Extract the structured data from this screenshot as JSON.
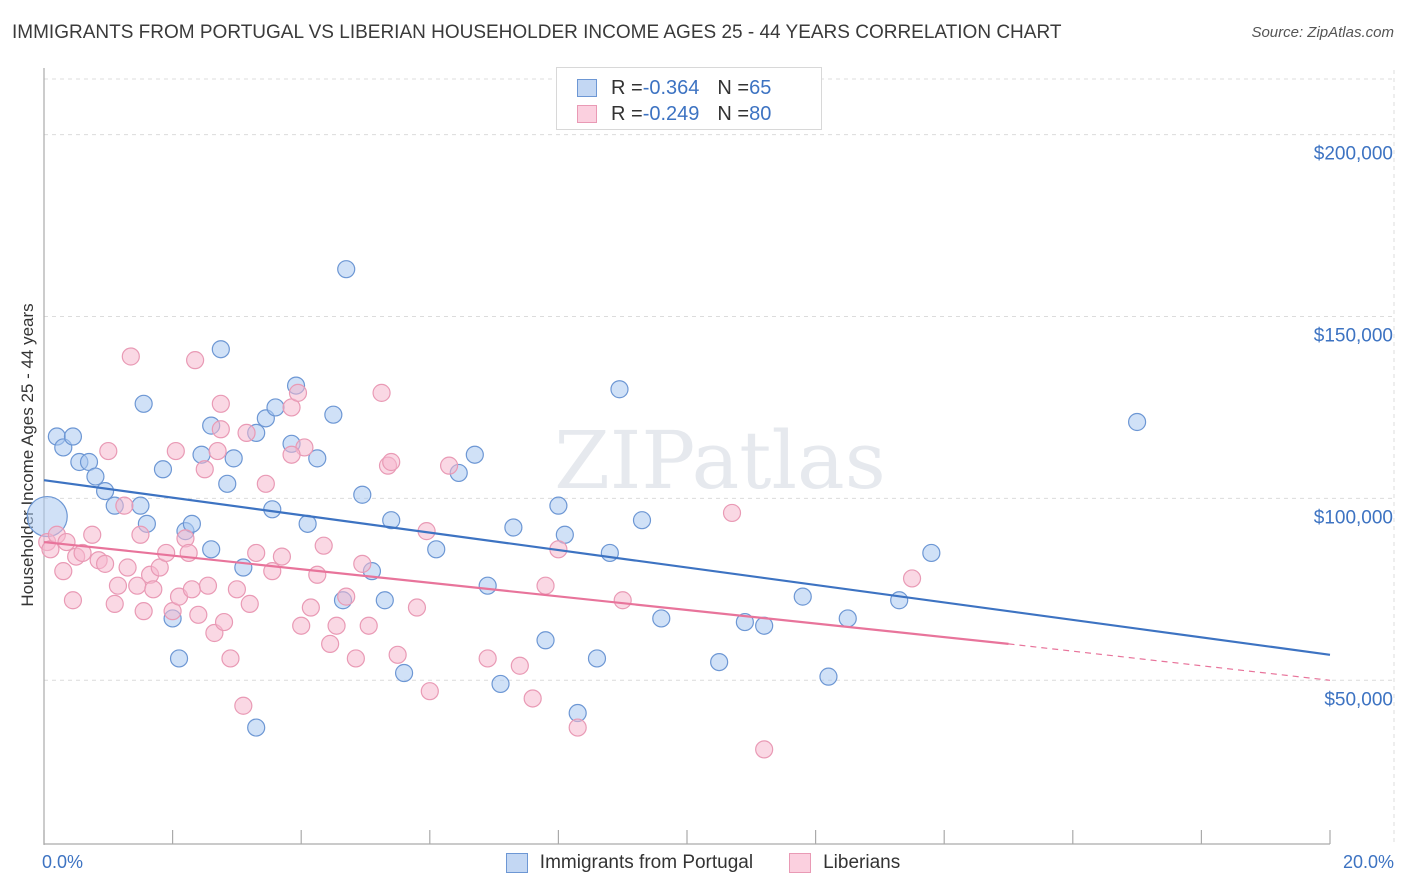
{
  "title": "IMMIGRANTS FROM PORTUGAL VS LIBERIAN HOUSEHOLDER INCOME AGES 25 - 44 YEARS CORRELATION CHART",
  "source": "Source: ZipAtlas.com",
  "watermark": "ZIPatlas",
  "colors": {
    "blue": "#3d73c2",
    "blue_fill": "#a9c8f0",
    "pink": "#e8749b",
    "pink_fill": "#f5b8cd",
    "grid": "#dcdcdc"
  },
  "legend": {
    "rows": [
      {
        "r_label": "R = ",
        "r_value": "-0.364",
        "n_label": "N = ",
        "n_value": "65"
      },
      {
        "r_label": "R = ",
        "r_value": "-0.249",
        "n_label": "N = ",
        "n_value": "80"
      }
    ]
  },
  "chart_data": {
    "type": "scatter",
    "xlabel": "",
    "ylabel": "Householder Income Ages 25 - 44 years",
    "xlim": [
      0,
      20
    ],
    "ylim": [
      5000,
      215000
    ],
    "x_tick_labels": [
      "0.0%",
      "20.0%"
    ],
    "y_ticks": [
      50000,
      100000,
      150000,
      200000
    ],
    "y_tick_labels": [
      "$50,000",
      "$100,000",
      "$150,000",
      "$200,000"
    ],
    "series": [
      {
        "name": "Immigrants from Portugal",
        "color": "#3d73c2",
        "trend": {
          "x0": 0,
          "y0": 105000,
          "x1": 20,
          "y1": 57000
        },
        "points": [
          [
            0.05,
            95000
          ],
          [
            0.2,
            117000
          ],
          [
            0.3,
            114000
          ],
          [
            0.45,
            117000
          ],
          [
            0.55,
            110000
          ],
          [
            0.7,
            110000
          ],
          [
            0.8,
            106000
          ],
          [
            0.95,
            102000
          ],
          [
            1.1,
            98000
          ],
          [
            1.5,
            98000
          ],
          [
            1.6,
            93000
          ],
          [
            1.85,
            108000
          ],
          [
            2.0,
            67000
          ],
          [
            2.1,
            56000
          ],
          [
            2.2,
            91000
          ],
          [
            2.3,
            93000
          ],
          [
            2.45,
            112000
          ],
          [
            2.6,
            86000
          ],
          [
            2.75,
            141000
          ],
          [
            2.85,
            104000
          ],
          [
            2.95,
            111000
          ],
          [
            3.1,
            81000
          ],
          [
            3.3,
            118000
          ],
          [
            3.45,
            122000
          ],
          [
            3.55,
            97000
          ],
          [
            3.6,
            125000
          ],
          [
            3.85,
            115000
          ],
          [
            3.92,
            131000
          ],
          [
            4.1,
            93000
          ],
          [
            4.25,
            111000
          ],
          [
            4.5,
            123000
          ],
          [
            4.65,
            72000
          ],
          [
            4.7,
            163000
          ],
          [
            4.95,
            101000
          ],
          [
            5.1,
            80000
          ],
          [
            5.3,
            72000
          ],
          [
            5.6,
            52000
          ],
          [
            6.1,
            86000
          ],
          [
            6.45,
            107000
          ],
          [
            6.7,
            112000
          ],
          [
            6.9,
            76000
          ],
          [
            7.1,
            49000
          ],
          [
            7.3,
            92000
          ],
          [
            7.8,
            61000
          ],
          [
            8.0,
            98000
          ],
          [
            8.1,
            90000
          ],
          [
            8.3,
            41000
          ],
          [
            8.6,
            56000
          ],
          [
            8.8,
            85000
          ],
          [
            8.95,
            130000
          ],
          [
            9.3,
            94000
          ],
          [
            9.6,
            67000
          ],
          [
            10.5,
            55000
          ],
          [
            10.9,
            66000
          ],
          [
            11.2,
            65000
          ],
          [
            11.8,
            73000
          ],
          [
            12.2,
            51000
          ],
          [
            12.5,
            67000
          ],
          [
            13.3,
            72000
          ],
          [
            13.8,
            85000
          ],
          [
            3.3,
            37000
          ],
          [
            2.6,
            120000
          ],
          [
            1.55,
            126000
          ],
          [
            17.0,
            121000
          ],
          [
            5.4,
            94000
          ]
        ]
      },
      {
        "name": "Liberians",
        "color": "#e8749b",
        "trend": {
          "x0": 0,
          "y0": 88000,
          "x1": 15,
          "y1": 60000,
          "dash_x1": 20,
          "dash_y1": 50000
        },
        "points": [
          [
            0.05,
            88000
          ],
          [
            0.1,
            86000
          ],
          [
            0.2,
            90000
          ],
          [
            0.3,
            80000
          ],
          [
            0.35,
            88000
          ],
          [
            0.45,
            72000
          ],
          [
            0.5,
            84000
          ],
          [
            0.6,
            85000
          ],
          [
            0.75,
            90000
          ],
          [
            0.85,
            83000
          ],
          [
            0.95,
            82000
          ],
          [
            1.0,
            113000
          ],
          [
            1.1,
            71000
          ],
          [
            1.15,
            76000
          ],
          [
            1.25,
            98000
          ],
          [
            1.3,
            81000
          ],
          [
            1.45,
            76000
          ],
          [
            1.5,
            90000
          ],
          [
            1.55,
            69000
          ],
          [
            1.65,
            79000
          ],
          [
            1.7,
            75000
          ],
          [
            1.8,
            81000
          ],
          [
            1.9,
            85000
          ],
          [
            2.0,
            69000
          ],
          [
            2.05,
            113000
          ],
          [
            2.1,
            73000
          ],
          [
            2.2,
            89000
          ],
          [
            2.25,
            85000
          ],
          [
            2.3,
            75000
          ],
          [
            2.4,
            68000
          ],
          [
            2.5,
            108000
          ],
          [
            2.55,
            76000
          ],
          [
            2.65,
            63000
          ],
          [
            2.7,
            113000
          ],
          [
            2.75,
            119000
          ],
          [
            2.8,
            66000
          ],
          [
            2.9,
            56000
          ],
          [
            3.0,
            75000
          ],
          [
            3.1,
            43000
          ],
          [
            3.15,
            118000
          ],
          [
            3.2,
            71000
          ],
          [
            3.3,
            85000
          ],
          [
            3.45,
            104000
          ],
          [
            3.55,
            80000
          ],
          [
            3.7,
            84000
          ],
          [
            3.85,
            125000
          ],
          [
            3.95,
            129000
          ],
          [
            4.05,
            114000
          ],
          [
            4.15,
            70000
          ],
          [
            4.25,
            79000
          ],
          [
            4.35,
            87000
          ],
          [
            4.45,
            60000
          ],
          [
            4.55,
            65000
          ],
          [
            4.7,
            73000
          ],
          [
            4.85,
            56000
          ],
          [
            4.95,
            82000
          ],
          [
            5.05,
            65000
          ],
          [
            5.25,
            129000
          ],
          [
            5.35,
            109000
          ],
          [
            5.4,
            110000
          ],
          [
            5.5,
            57000
          ],
          [
            5.8,
            70000
          ],
          [
            5.95,
            91000
          ],
          [
            6.0,
            47000
          ],
          [
            6.3,
            109000
          ],
          [
            6.9,
            56000
          ],
          [
            7.4,
            54000
          ],
          [
            7.6,
            45000
          ],
          [
            7.8,
            76000
          ],
          [
            8.0,
            86000
          ],
          [
            8.3,
            37000
          ],
          [
            9.0,
            72000
          ],
          [
            10.7,
            96000
          ],
          [
            11.2,
            31000
          ],
          [
            13.5,
            78000
          ],
          [
            2.35,
            138000
          ],
          [
            1.35,
            139000
          ],
          [
            2.75,
            126000
          ],
          [
            3.85,
            112000
          ],
          [
            4.0,
            65000
          ]
        ]
      }
    ]
  }
}
